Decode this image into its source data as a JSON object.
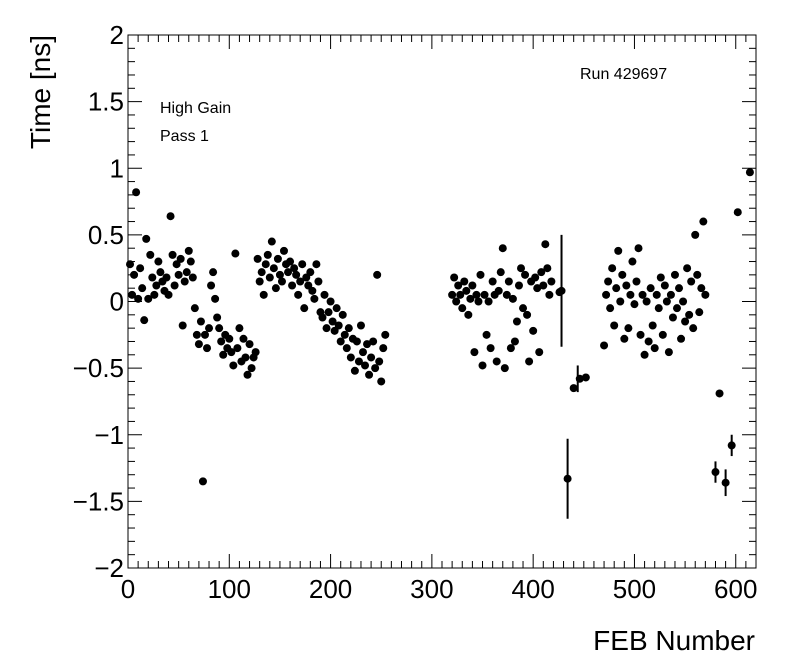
{
  "chart_data": {
    "type": "scatter",
    "xlabel": "FEB Number",
    "ylabel": "Time [ns]",
    "xlim": [
      0,
      620
    ],
    "ylim": [
      -2,
      2
    ],
    "xticks": [
      "0",
      "100",
      "200",
      "300",
      "400",
      "500",
      "600"
    ],
    "yticks": [
      "2",
      "1.5",
      "1",
      "0.5",
      "0",
      "−0.5",
      "−1",
      "−1.5",
      "−2"
    ],
    "grid": false,
    "annotations": {
      "run": "Run 429697",
      "gain": "High Gain",
      "pass": "Pass 1"
    },
    "points": [
      [
        2,
        0.28
      ],
      [
        4,
        0.05
      ],
      [
        6,
        0.2
      ],
      [
        8,
        0.82
      ],
      [
        10,
        0.02
      ],
      [
        12,
        0.25
      ],
      [
        14,
        0.1
      ],
      [
        16,
        -0.14
      ],
      [
        18,
        0.47
      ],
      [
        20,
        0.02
      ],
      [
        22,
        0.35
      ],
      [
        24,
        0.18
      ],
      [
        26,
        0.05
      ],
      [
        28,
        0.12
      ],
      [
        30,
        0.3
      ],
      [
        32,
        0.22
      ],
      [
        34,
        0.15
      ],
      [
        36,
        0.08
      ],
      [
        38,
        0.18
      ],
      [
        40,
        0.05
      ],
      [
        42,
        0.64
      ],
      [
        44,
        0.35
      ],
      [
        46,
        0.12
      ],
      [
        48,
        0.28
      ],
      [
        50,
        0.2
      ],
      [
        52,
        0.32
      ],
      [
        54,
        -0.18
      ],
      [
        56,
        0.15
      ],
      [
        58,
        0.22
      ],
      [
        60,
        0.38
      ],
      [
        62,
        0.3
      ],
      [
        64,
        0.18
      ],
      [
        66,
        -0.05
      ],
      [
        68,
        -0.25
      ],
      [
        70,
        -0.32
      ],
      [
        72,
        -0.15
      ],
      [
        74,
        -1.35
      ],
      [
        76,
        -0.25
      ],
      [
        78,
        -0.35
      ],
      [
        80,
        -0.2
      ],
      [
        82,
        0.12
      ],
      [
        84,
        0.22
      ],
      [
        86,
        0.02
      ],
      [
        88,
        -0.12
      ],
      [
        90,
        -0.2
      ],
      [
        92,
        -0.3
      ],
      [
        94,
        -0.4
      ],
      [
        96,
        -0.25
      ],
      [
        98,
        -0.35
      ],
      [
        100,
        -0.28
      ],
      [
        102,
        -0.38
      ],
      [
        104,
        -0.48
      ],
      [
        106,
        0.36
      ],
      [
        108,
        -0.35
      ],
      [
        110,
        -0.2
      ],
      [
        112,
        -0.45
      ],
      [
        114,
        -0.28
      ],
      [
        116,
        -0.42
      ],
      [
        118,
        -0.55
      ],
      [
        120,
        -0.32
      ],
      [
        122,
        -0.5
      ],
      [
        124,
        -0.42
      ],
      [
        126,
        -0.38
      ],
      [
        128,
        0.32
      ],
      [
        130,
        0.15
      ],
      [
        132,
        0.22
      ],
      [
        134,
        0.05
      ],
      [
        136,
        0.28
      ],
      [
        138,
        0.35
      ],
      [
        140,
        0.18
      ],
      [
        142,
        0.45
      ],
      [
        144,
        0.25
      ],
      [
        146,
        0.1
      ],
      [
        148,
        0.32
      ],
      [
        150,
        0.2
      ],
      [
        152,
        0.15
      ],
      [
        154,
        0.38
      ],
      [
        156,
        0.28
      ],
      [
        158,
        0.22
      ],
      [
        160,
        0.3
      ],
      [
        162,
        0.12
      ],
      [
        164,
        0.25
      ],
      [
        166,
        0.2
      ],
      [
        168,
        0.05
      ],
      [
        170,
        0.15
      ],
      [
        172,
        0.28
      ],
      [
        174,
        -0.05
      ],
      [
        176,
        0.18
      ],
      [
        178,
        0.12
      ],
      [
        180,
        0.22
      ],
      [
        182,
        0.08
      ],
      [
        184,
        0.02
      ],
      [
        186,
        0.28
      ],
      [
        188,
        0.15
      ],
      [
        190,
        -0.08
      ],
      [
        192,
        -0.12
      ],
      [
        194,
        0.05
      ],
      [
        196,
        -0.2
      ],
      [
        198,
        -0.08
      ],
      [
        200,
        0.0
      ],
      [
        202,
        -0.15
      ],
      [
        204,
        -0.22
      ],
      [
        206,
        -0.05
      ],
      [
        208,
        -0.18
      ],
      [
        210,
        -0.3
      ],
      [
        212,
        -0.1
      ],
      [
        214,
        -0.25
      ],
      [
        216,
        -0.35
      ],
      [
        218,
        -0.2
      ],
      [
        220,
        -0.42
      ],
      [
        222,
        -0.28
      ],
      [
        224,
        -0.52
      ],
      [
        226,
        -0.3
      ],
      [
        228,
        -0.45
      ],
      [
        230,
        -0.18
      ],
      [
        232,
        -0.38
      ],
      [
        234,
        -0.48
      ],
      [
        236,
        -0.32
      ],
      [
        238,
        -0.55
      ],
      [
        240,
        -0.42
      ],
      [
        242,
        -0.3
      ],
      [
        244,
        -0.5
      ],
      [
        246,
        0.2
      ],
      [
        248,
        -0.45
      ],
      [
        250,
        -0.6
      ],
      [
        252,
        -0.35
      ],
      [
        254,
        -0.25
      ],
      [
        320,
        0.05
      ],
      [
        322,
        0.18
      ],
      [
        324,
        0.0
      ],
      [
        326,
        0.12
      ],
      [
        328,
        0.05
      ],
      [
        330,
        -0.05
      ],
      [
        332,
        0.15
      ],
      [
        334,
        0.08
      ],
      [
        336,
        -0.1
      ],
      [
        338,
        0.02
      ],
      [
        340,
        0.12
      ],
      [
        342,
        -0.38
      ],
      [
        344,
        0.05
      ],
      [
        346,
        0.0
      ],
      [
        348,
        0.2
      ],
      [
        350,
        -0.48
      ],
      [
        352,
        0.05
      ],
      [
        354,
        -0.25
      ],
      [
        356,
        0.0
      ],
      [
        358,
        -0.35
      ],
      [
        360,
        0.15
      ],
      [
        362,
        0.05
      ],
      [
        364,
        -0.45
      ],
      [
        366,
        0.08
      ],
      [
        368,
        0.22
      ],
      [
        370,
        0.4
      ],
      [
        372,
        -0.5
      ],
      [
        374,
        0.05
      ],
      [
        376,
        0.15
      ],
      [
        378,
        -0.35
      ],
      [
        380,
        0.02
      ],
      [
        382,
        -0.3
      ],
      [
        384,
        -0.15
      ],
      [
        386,
        0.12
      ],
      [
        388,
        0.25
      ],
      [
        390,
        -0.05
      ],
      [
        392,
        0.2
      ],
      [
        394,
        -0.1
      ],
      [
        396,
        -0.45
      ],
      [
        398,
        0.15
      ],
      [
        400,
        -0.22
      ],
      [
        402,
        0.18
      ],
      [
        404,
        0.1
      ],
      [
        406,
        -0.38
      ],
      [
        408,
        0.22
      ],
      [
        410,
        0.12
      ],
      [
        412,
        0.43
      ],
      [
        414,
        0.25
      ],
      [
        416,
        0.05
      ],
      [
        418,
        0.15
      ],
      [
        426,
        0.07
      ],
      [
        428,
        0.08
      ],
      [
        434,
        -1.33
      ],
      [
        440,
        -0.65
      ],
      [
        446,
        -0.58
      ],
      [
        452,
        -0.57
      ],
      [
        470,
        -0.33
      ],
      [
        472,
        0.05
      ],
      [
        474,
        0.15
      ],
      [
        476,
        -0.05
      ],
      [
        478,
        0.25
      ],
      [
        480,
        -0.18
      ],
      [
        482,
        0.1
      ],
      [
        484,
        0.38
      ],
      [
        486,
        0.0
      ],
      [
        488,
        0.2
      ],
      [
        490,
        -0.28
      ],
      [
        492,
        0.12
      ],
      [
        494,
        -0.2
      ],
      [
        496,
        0.05
      ],
      [
        498,
        0.3
      ],
      [
        500,
        -0.02
      ],
      [
        502,
        0.15
      ],
      [
        504,
        0.4
      ],
      [
        506,
        -0.25
      ],
      [
        508,
        0.05
      ],
      [
        510,
        -0.4
      ],
      [
        512,
        0.0
      ],
      [
        514,
        -0.3
      ],
      [
        516,
        0.1
      ],
      [
        518,
        -0.18
      ],
      [
        520,
        -0.35
      ],
      [
        522,
        0.05
      ],
      [
        524,
        -0.05
      ],
      [
        526,
        0.18
      ],
      [
        528,
        -0.25
      ],
      [
        530,
        0.12
      ],
      [
        532,
        0.0
      ],
      [
        534,
        -0.38
      ],
      [
        536,
        0.05
      ],
      [
        538,
        -0.12
      ],
      [
        540,
        0.2
      ],
      [
        542,
        -0.05
      ],
      [
        544,
        0.1
      ],
      [
        546,
        -0.28
      ],
      [
        548,
        0.0
      ],
      [
        550,
        -0.15
      ],
      [
        552,
        0.25
      ],
      [
        554,
        -0.1
      ],
      [
        556,
        0.15
      ],
      [
        558,
        -0.2
      ],
      [
        560,
        0.5
      ],
      [
        562,
        0.2
      ],
      [
        564,
        -0.08
      ],
      [
        566,
        0.1
      ],
      [
        568,
        0.6
      ],
      [
        570,
        0.05
      ],
      [
        580,
        -1.28
      ],
      [
        584,
        -0.69
      ],
      [
        590,
        -1.36
      ],
      [
        596,
        -1.08
      ],
      [
        602,
        0.67
      ],
      [
        614,
        0.97
      ]
    ],
    "error_bars": [
      [
        428,
        0.08,
        0.42
      ],
      [
        434,
        -1.33,
        0.3
      ],
      [
        444,
        -0.58,
        0.1
      ],
      [
        580,
        -1.28,
        0.08
      ],
      [
        590,
        -1.36,
        0.1
      ],
      [
        596,
        -1.08,
        0.08
      ]
    ]
  }
}
